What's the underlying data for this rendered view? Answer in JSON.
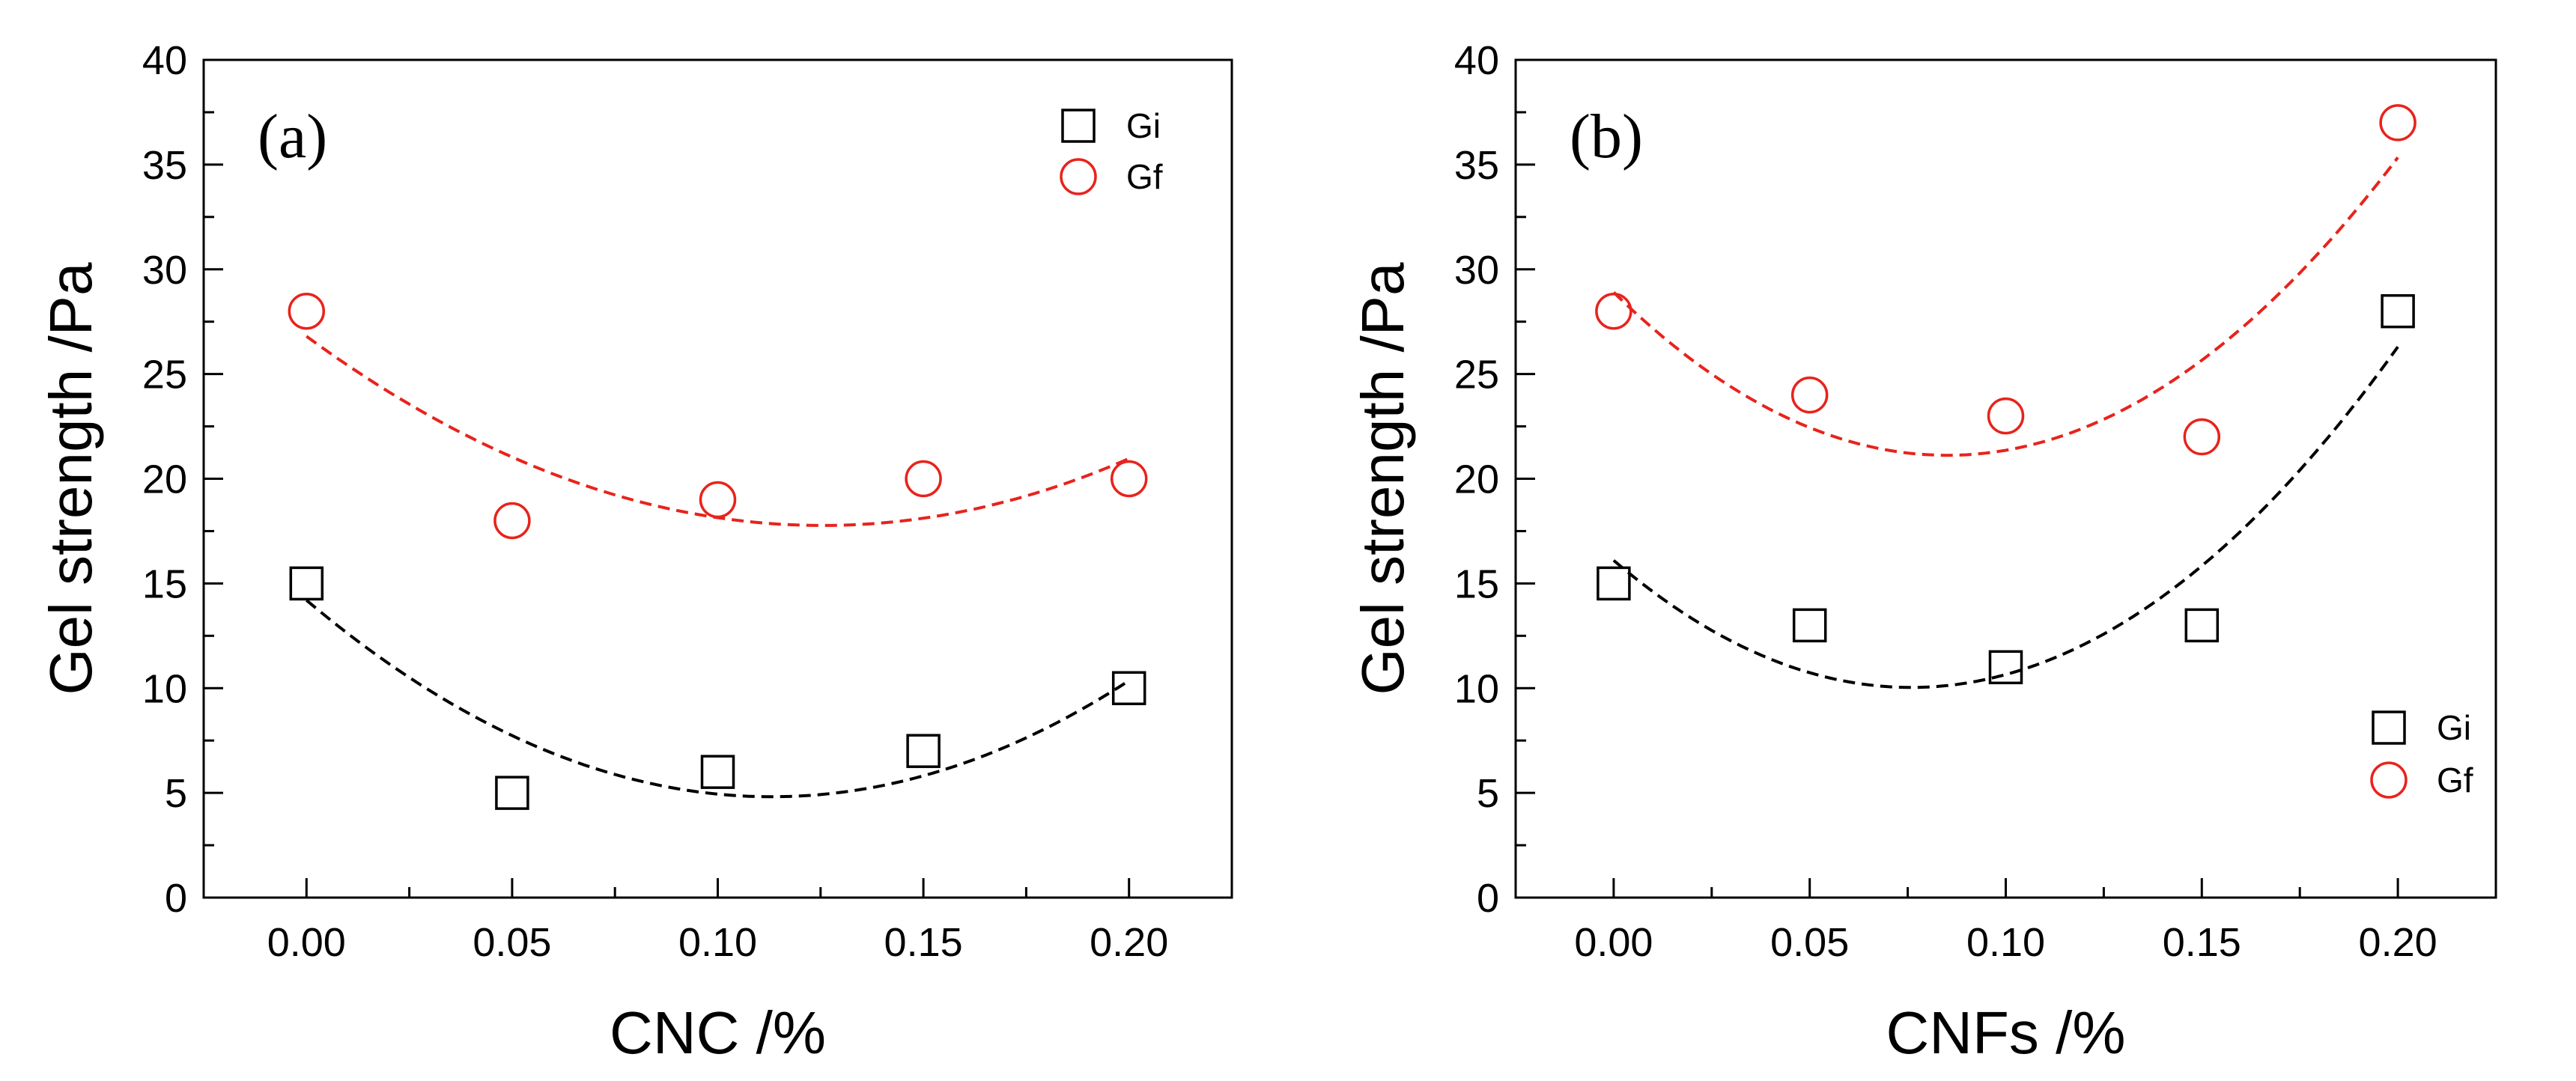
{
  "chart_data": [
    {
      "type": "scatter",
      "panel_label": "(a)",
      "xlabel": "CNC /%",
      "ylabel": "Gel strength /Pa",
      "xlim": [
        -0.025,
        0.225
      ],
      "ylim": [
        0,
        40
      ],
      "x_ticks": [
        "0.00",
        "0.05",
        "0.10",
        "0.15",
        "0.20"
      ],
      "y_ticks": [
        "0",
        "5",
        "10",
        "15",
        "20",
        "25",
        "30",
        "35",
        "40"
      ],
      "x": [
        0.0,
        0.05,
        0.1,
        0.15,
        0.2
      ],
      "grid": false,
      "legend_position": "top-right",
      "series": [
        {
          "name": "Gi",
          "marker": "open-square",
          "color": "#000000",
          "values": [
            15,
            5,
            6,
            7,
            10
          ],
          "fit": {
            "style": "dashed",
            "coefficients": [
              14.2,
              -166,
              734
            ]
          }
        },
        {
          "name": "Gf",
          "marker": "open-circle",
          "color": "#e8231c",
          "values": [
            28,
            18,
            19,
            20,
            20
          ],
          "fit": {
            "style": "dashed",
            "coefficients": [
              26.8,
              -144,
              574
            ]
          }
        }
      ]
    },
    {
      "type": "scatter",
      "panel_label": "(b)",
      "xlabel": "CNFs /%",
      "ylabel": "Gel strength /Pa",
      "xlim": [
        -0.025,
        0.225
      ],
      "ylim": [
        0,
        40
      ],
      "x_ticks": [
        "0.00",
        "0.05",
        "0.10",
        "0.15",
        "0.20"
      ],
      "y_ticks": [
        "0",
        "5",
        "10",
        "15",
        "20",
        "25",
        "30",
        "35",
        "40"
      ],
      "x": [
        0.0,
        0.05,
        0.1,
        0.15,
        0.2
      ],
      "grid": false,
      "legend_position": "bottom-right",
      "series": [
        {
          "name": "Gi",
          "marker": "open-square",
          "color": "#000000",
          "values": [
            15,
            13,
            11,
            13,
            28
          ],
          "fit": {
            "style": "dashed",
            "coefficients": [
              16.1,
              -160,
              1055
            ]
          }
        },
        {
          "name": "Gf",
          "marker": "open-circle",
          "color": "#e8231c",
          "values": [
            28,
            24,
            23,
            22,
            37
          ],
          "fit": {
            "style": "dashed",
            "coefficients": [
              28.9,
              -183,
              1076
            ]
          }
        }
      ]
    }
  ]
}
